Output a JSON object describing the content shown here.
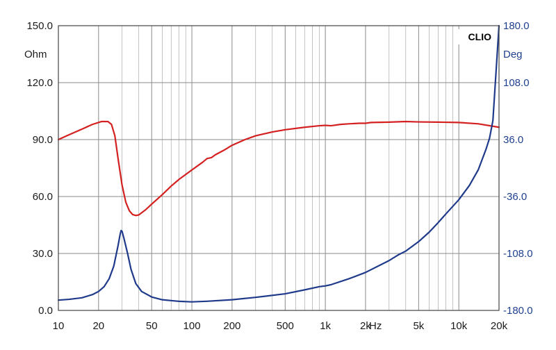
{
  "chart_data": {
    "type": "line",
    "brand": "CLIO",
    "x_scale": "log",
    "xlim": [
      10,
      20000
    ],
    "x_ticks": [
      {
        "value": 10,
        "label": "10"
      },
      {
        "value": 20,
        "label": "20"
      },
      {
        "value": 50,
        "label": "50"
      },
      {
        "value": 100,
        "label": "100"
      },
      {
        "value": 200,
        "label": "200"
      },
      {
        "value": 500,
        "label": "500"
      },
      {
        "value": 1000,
        "label": "1k"
      },
      {
        "value": 2000,
        "label": "2k"
      },
      {
        "value": 5000,
        "label": "5k"
      },
      {
        "value": 10000,
        "label": "10k"
      },
      {
        "value": 20000,
        "label": "20k"
      }
    ],
    "x_unit_label": "Hz",
    "left_axis": {
      "unit": "Ohm",
      "ylim": [
        0,
        150
      ],
      "ticks": [
        "0.0",
        "30.0",
        "60.0",
        "90.0",
        "120.0",
        "150.0"
      ]
    },
    "right_axis": {
      "unit": "Deg",
      "ylim": [
        -180,
        180
      ],
      "ticks": [
        "-180.0",
        "-108.0",
        "-36.0",
        "36.0",
        "108.0",
        "180.0"
      ]
    },
    "grid": true,
    "series": [
      {
        "color": "#d42020",
        "axis": "left",
        "points": [
          [
            10,
            90
          ],
          [
            12,
            92.5
          ],
          [
            15,
            95.5
          ],
          [
            18,
            98
          ],
          [
            21,
            99.5
          ],
          [
            23.5,
            99.5
          ],
          [
            25,
            98
          ],
          [
            26.5,
            92
          ],
          [
            28,
            80
          ],
          [
            30,
            66
          ],
          [
            32,
            57
          ],
          [
            34,
            52.5
          ],
          [
            36,
            50.5
          ],
          [
            38,
            50
          ],
          [
            40,
            50.3
          ],
          [
            45,
            53
          ],
          [
            50,
            56
          ],
          [
            60,
            61
          ],
          [
            70,
            65.5
          ],
          [
            80,
            69
          ],
          [
            100,
            74
          ],
          [
            120,
            78
          ],
          [
            130,
            80
          ],
          [
            140,
            80.5
          ],
          [
            150,
            82
          ],
          [
            175,
            84.5
          ],
          [
            200,
            87
          ],
          [
            250,
            90
          ],
          [
            300,
            92
          ],
          [
            400,
            94
          ],
          [
            500,
            95.2
          ],
          [
            700,
            96.5
          ],
          [
            900,
            97.3
          ],
          [
            1000,
            97.5
          ],
          [
            1100,
            97.3
          ],
          [
            1300,
            98
          ],
          [
            1500,
            98.3
          ],
          [
            1800,
            98.6
          ],
          [
            2000,
            98.6
          ],
          [
            2200,
            99
          ],
          [
            3000,
            99.2
          ],
          [
            4000,
            99.5
          ],
          [
            5000,
            99.3
          ],
          [
            7000,
            99.2
          ],
          [
            10000,
            99
          ],
          [
            14000,
            98.3
          ],
          [
            20000,
            96.5
          ]
        ]
      },
      {
        "color": "#1f3a8a",
        "axis": "right",
        "points": [
          [
            10,
            -167
          ],
          [
            12,
            -166
          ],
          [
            15,
            -164
          ],
          [
            18,
            -160
          ],
          [
            20,
            -156
          ],
          [
            22,
            -150
          ],
          [
            24,
            -140
          ],
          [
            26,
            -124
          ],
          [
            28,
            -98
          ],
          [
            29,
            -84
          ],
          [
            29.5,
            -79
          ],
          [
            30,
            -80
          ],
          [
            31,
            -89
          ],
          [
            33,
            -108
          ],
          [
            35,
            -128
          ],
          [
            38,
            -146
          ],
          [
            42,
            -156
          ],
          [
            50,
            -163
          ],
          [
            60,
            -166.5
          ],
          [
            80,
            -168.5
          ],
          [
            100,
            -169.2
          ],
          [
            130,
            -168.4
          ],
          [
            200,
            -166.5
          ],
          [
            300,
            -163.5
          ],
          [
            500,
            -159
          ],
          [
            700,
            -154
          ],
          [
            900,
            -150
          ],
          [
            1000,
            -149
          ],
          [
            1100,
            -147.5
          ],
          [
            1500,
            -140
          ],
          [
            2000,
            -132
          ],
          [
            3000,
            -117
          ],
          [
            3500,
            -110
          ],
          [
            4000,
            -105
          ],
          [
            5000,
            -93
          ],
          [
            6000,
            -81
          ],
          [
            7000,
            -69
          ],
          [
            8000,
            -58
          ],
          [
            10000,
            -40
          ],
          [
            12000,
            -22
          ],
          [
            14000,
            -2
          ],
          [
            16000,
            24
          ],
          [
            17000,
            38
          ],
          [
            18000,
            60
          ],
          [
            20000,
            180
          ]
        ]
      }
    ]
  }
}
